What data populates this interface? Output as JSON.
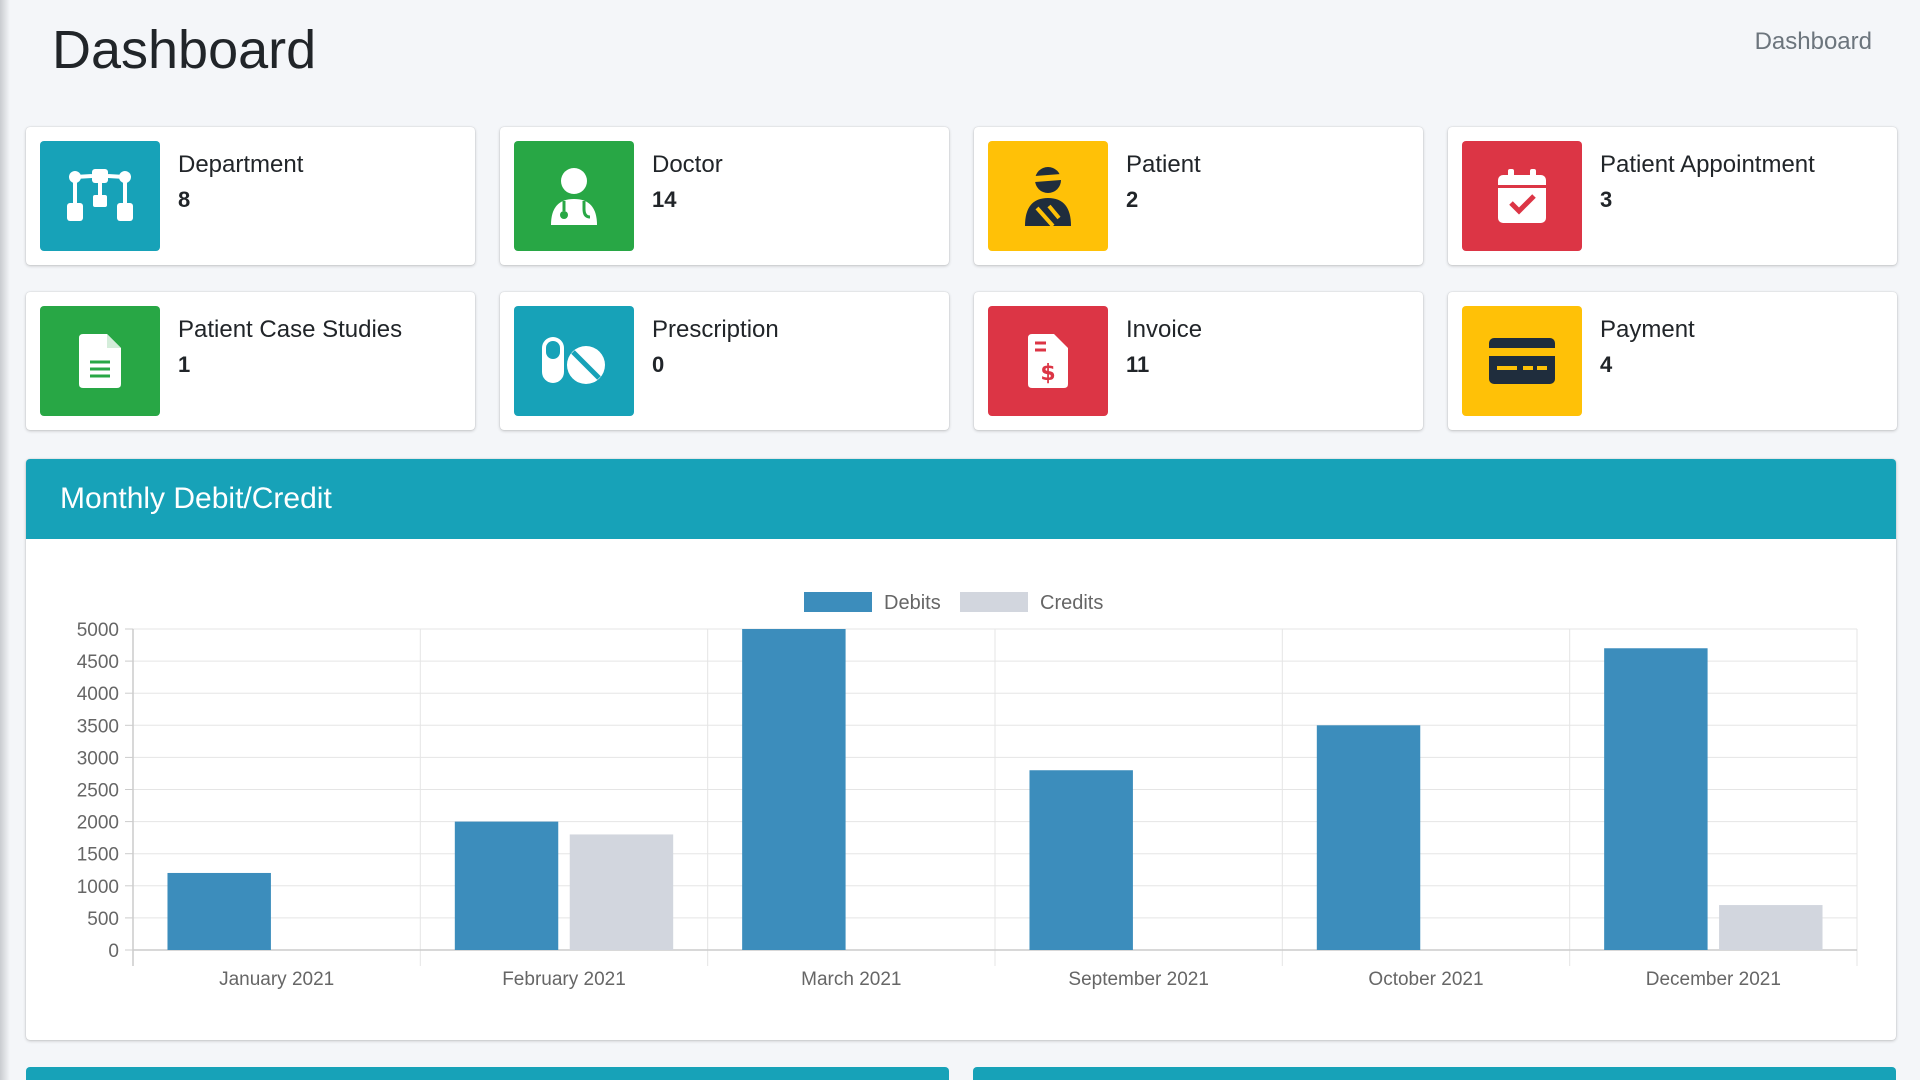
{
  "header": {
    "title": "Dashboard",
    "breadcrumb": "Dashboard"
  },
  "cards": [
    {
      "label": "Department",
      "value": "8",
      "color": "#17a2b8",
      "icon": "department-icon"
    },
    {
      "label": "Doctor",
      "value": "14",
      "color": "#28a745",
      "icon": "doctor-icon"
    },
    {
      "label": "Patient",
      "value": "2",
      "color": "#ffc107",
      "icon": "patient-icon"
    },
    {
      "label": "Patient Appointment",
      "value": "3",
      "color": "#dc3545",
      "icon": "calendar-check-icon"
    },
    {
      "label": "Patient Case Studies",
      "value": "1",
      "color": "#28a745",
      "icon": "file-icon"
    },
    {
      "label": "Prescription",
      "value": "0",
      "color": "#17a2b8",
      "icon": "pills-icon"
    },
    {
      "label": "Invoice",
      "value": "11",
      "color": "#dc3545",
      "icon": "invoice-icon"
    },
    {
      "label": "Payment",
      "value": "4",
      "color": "#ffc107",
      "icon": "credit-card-icon"
    }
  ],
  "chart_panel": {
    "title": "Monthly Debit/Credit"
  },
  "chart_data": {
    "type": "bar",
    "categories": [
      "January 2021",
      "February 2021",
      "March 2021",
      "September 2021",
      "October 2021",
      "December 2021"
    ],
    "series": [
      {
        "name": "Debits",
        "color": "#3c8dbc",
        "values": [
          1200,
          2000,
          5000,
          2800,
          3500,
          4700
        ]
      },
      {
        "name": "Credits",
        "color": "#d2d6de",
        "values": [
          0,
          1800,
          0,
          0,
          0,
          700
        ]
      }
    ],
    "ylim": [
      0,
      5000
    ],
    "yticks": [
      0,
      500,
      1000,
      1500,
      2000,
      2500,
      3000,
      3500,
      4000,
      4500,
      5000
    ],
    "legend": "top-center",
    "grid": true
  }
}
